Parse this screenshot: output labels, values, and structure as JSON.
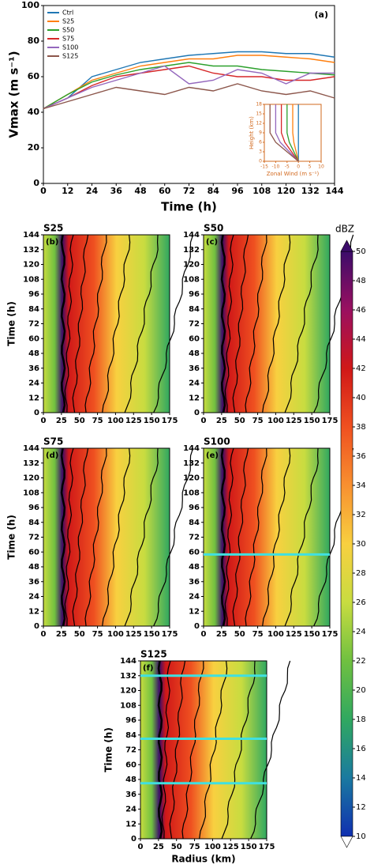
{
  "chart_data": [
    {
      "type": "line",
      "panel_label": "(a)",
      "xlabel": "Time (h)",
      "ylabel": "Vmax (m s⁻¹)",
      "x": [
        0,
        12,
        24,
        36,
        48,
        60,
        72,
        84,
        96,
        108,
        120,
        132,
        144
      ],
      "xlim": [
        0,
        144
      ],
      "xticks": [
        0,
        12,
        24,
        36,
        48,
        60,
        72,
        84,
        96,
        108,
        120,
        132,
        144
      ],
      "ylim": [
        0,
        100
      ],
      "yticks": [
        0,
        20,
        40,
        60,
        80,
        100
      ],
      "legend": "upper left",
      "series": [
        {
          "name": "Ctrl",
          "color": "#1f77b4",
          "values": [
            42,
            48,
            60,
            64,
            68,
            70,
            72,
            73,
            74,
            74,
            73,
            73,
            71
          ]
        },
        {
          "name": "S25",
          "color": "#ff7f0e",
          "values": [
            42,
            50,
            58,
            62,
            66,
            68,
            70,
            70,
            72,
            72,
            71,
            70,
            68
          ]
        },
        {
          "name": "S50",
          "color": "#2ca02c",
          "values": [
            42,
            50,
            57,
            61,
            64,
            66,
            68,
            66,
            66,
            64,
            63,
            62,
            61
          ]
        },
        {
          "name": "S75",
          "color": "#d62728",
          "values": [
            42,
            48,
            55,
            60,
            62,
            64,
            66,
            62,
            60,
            60,
            58,
            58,
            60
          ]
        },
        {
          "name": "S100",
          "color": "#9467bd",
          "values": [
            42,
            48,
            54,
            58,
            62,
            66,
            56,
            58,
            64,
            62,
            56,
            62,
            62
          ]
        },
        {
          "name": "S125",
          "color": "#8c564b",
          "values": [
            42,
            46,
            50,
            54,
            52,
            50,
            54,
            52,
            56,
            52,
            50,
            52,
            48
          ]
        }
      ],
      "inset": {
        "xlabel": "Zonal Wind (m s⁻¹)",
        "ylabel": "Height (km)",
        "xlim": [
          -15,
          10
        ],
        "xticks": [
          -15,
          -10,
          -5,
          0,
          5,
          10
        ],
        "ylim": [
          0,
          18
        ],
        "yticks": [
          0,
          3,
          6,
          9,
          12,
          15,
          18
        ],
        "heights": [
          0,
          3,
          6,
          9,
          12,
          15,
          18
        ],
        "profiles": [
          [
            0,
            0,
            0,
            0,
            0,
            0,
            0
          ],
          [
            0,
            -1,
            -2,
            -2.5,
            -2.5,
            -2.5,
            -2.5
          ],
          [
            0,
            -2,
            -4,
            -5,
            -5,
            -5,
            -5
          ],
          [
            0,
            -3,
            -6,
            -7.5,
            -7.5,
            -7.5,
            -7.5
          ],
          [
            0,
            -4,
            -8,
            -10,
            -10,
            -10,
            -10
          ],
          [
            0,
            -5,
            -10,
            -12.5,
            -12.5,
            -12.5,
            -12.5
          ]
        ]
      }
    },
    {
      "type": "heatmap",
      "title": "S25",
      "panel_label": "(b)",
      "ylabel": "Time (h)",
      "xlim": [
        0,
        175
      ],
      "xticks": [
        0,
        25,
        50,
        75,
        100,
        125,
        150,
        175
      ],
      "ylim": [
        0,
        144
      ],
      "yticks": [
        0,
        12,
        24,
        36,
        48,
        60,
        72,
        84,
        96,
        108,
        120,
        132,
        144
      ],
      "hlines": []
    },
    {
      "type": "heatmap",
      "title": "S50",
      "panel_label": "(c)",
      "xlim": [
        0,
        175
      ],
      "xticks": [
        0,
        25,
        50,
        75,
        100,
        125,
        150,
        175
      ],
      "ylim": [
        0,
        144
      ],
      "yticks": [
        0,
        12,
        24,
        36,
        48,
        60,
        72,
        84,
        96,
        108,
        120,
        132,
        144
      ],
      "hlines": []
    },
    {
      "type": "heatmap",
      "title": "S75",
      "panel_label": "(d)",
      "ylabel": "Time (h)",
      "xlim": [
        0,
        175
      ],
      "xticks": [
        0,
        25,
        50,
        75,
        100,
        125,
        150,
        175
      ],
      "ylim": [
        0,
        144
      ],
      "yticks": [
        0,
        12,
        24,
        36,
        48,
        60,
        72,
        84,
        96,
        108,
        120,
        132,
        144
      ],
      "hlines": []
    },
    {
      "type": "heatmap",
      "title": "S100",
      "panel_label": "(e)",
      "xlim": [
        0,
        175
      ],
      "xticks": [
        0,
        25,
        50,
        75,
        100,
        125,
        150,
        175
      ],
      "ylim": [
        0,
        144
      ],
      "yticks": [
        0,
        12,
        24,
        36,
        48,
        60,
        72,
        84,
        96,
        108,
        120,
        132,
        144
      ],
      "hlines": [
        58
      ]
    },
    {
      "type": "heatmap",
      "title": "S125",
      "panel_label": "(f)",
      "ylabel": "Time (h)",
      "xlabel": "Radius (km)",
      "xlim": [
        0,
        175
      ],
      "xticks": [
        0,
        25,
        50,
        75,
        100,
        125,
        150,
        175
      ],
      "ylim": [
        0,
        144
      ],
      "yticks": [
        0,
        12,
        24,
        36,
        48,
        60,
        72,
        84,
        96,
        108,
        120,
        132,
        144
      ],
      "hlines": [
        132,
        81,
        45
      ]
    },
    {
      "type": "colorbar",
      "title": "dBZ",
      "ylim": [
        10,
        50
      ],
      "yticks": [
        10,
        12,
        14,
        16,
        18,
        20,
        22,
        24,
        26,
        28,
        30,
        32,
        34,
        36,
        38,
        40,
        42,
        44,
        46,
        48,
        50
      ],
      "colors": [
        "#1030b0",
        "#1a7aa0",
        "#30a860",
        "#70c040",
        "#c8dc40",
        "#f8d040",
        "#f89030",
        "#ef5020",
        "#d01818",
        "#9a1060",
        "#3c0c6a"
      ]
    }
  ]
}
